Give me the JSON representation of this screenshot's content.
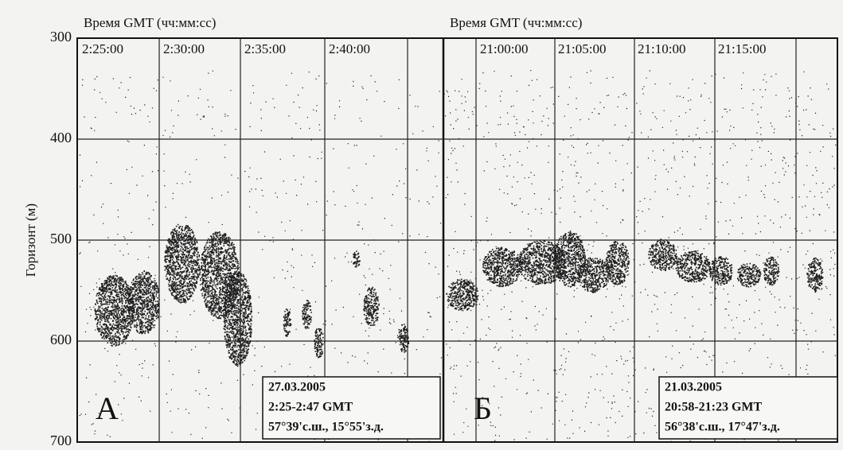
{
  "y_axis": {
    "label": "Горизонт (м)",
    "lim": [
      300,
      700
    ],
    "ticks": [
      300,
      400,
      500,
      600,
      700
    ]
  },
  "panels": [
    {
      "header": "Время GMT (чч:мм:сс)",
      "times": [
        "2:25:00",
        "2:30:00",
        "2:35:00",
        "2:40:00"
      ],
      "letter": "А",
      "info": [
        "27.03.2005",
        "2:25-2:47 GMT",
        "57°39'с.ш., 15°55'з.д."
      ]
    },
    {
      "header": "Время GMT (чч:мм:сс)",
      "times": [
        "21:00:00",
        "21:05:00",
        "21:10:00",
        "21:15:00"
      ],
      "letter": "Б",
      "info": [
        "21.03.2005",
        "20:58-21:23 GMT",
        "56°38'с.ш., 17°47'з.д."
      ]
    }
  ]
}
